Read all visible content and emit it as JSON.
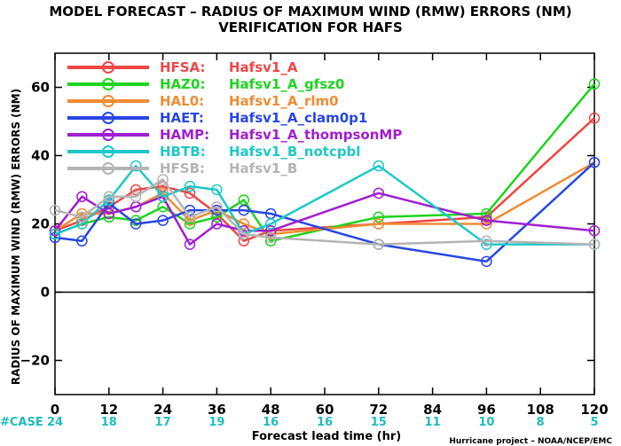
{
  "chart_data": {
    "type": "line",
    "title": "MODEL FORECAST – RADIUS OF MAXIMUM WIND (RMW) ERRORS (NM)",
    "subtitle": "VERIFICATION FOR HAFS",
    "xlabel": "Forecast lead time (hr)",
    "ylabel": "RADIUS OF MAXIMUM WIND (RMW) ERRORS (NM)",
    "xlim": [
      0,
      120
    ],
    "ylim": [
      -30,
      70
    ],
    "x_ticks": [
      0,
      12,
      24,
      36,
      48,
      60,
      72,
      84,
      96,
      108,
      120
    ],
    "y_ticks": [
      -20,
      0,
      20,
      40,
      60
    ],
    "y_tick_labels": [
      "−20",
      "0",
      "20",
      "40",
      "60"
    ],
    "x_tick_labels": [
      "0",
      "12",
      "24",
      "36",
      "48",
      "60",
      "72",
      "84",
      "96",
      "108",
      "120"
    ],
    "case_label": "#CASE",
    "case_counts": [
      "24",
      "18",
      "17",
      "19",
      "16",
      "16",
      "15",
      "11",
      "10",
      "8",
      "5"
    ],
    "legend_position": "top-left",
    "grid": false,
    "x": [
      0,
      6,
      12,
      18,
      24,
      30,
      36,
      42,
      48,
      72,
      96,
      120
    ],
    "series": [
      {
        "code": "HFSA:",
        "name": "Hafsv1_A",
        "color": "#f04646",
        "values": [
          18,
          21,
          25,
          30,
          31,
          29,
          23,
          15,
          18,
          20,
          22,
          51
        ]
      },
      {
        "code": "HAZ0:",
        "name": "Hafsv1_A_gfsz0",
        "color": "#1ed41e",
        "values": [
          17,
          20,
          22,
          21,
          25,
          20,
          22,
          27,
          15,
          22,
          23,
          61
        ]
      },
      {
        "code": "HAL0:",
        "name": "Hafsv1_A_rlm0",
        "color": "#f08c32",
        "values": [
          18,
          23,
          23,
          25,
          29,
          21,
          24,
          20,
          17,
          20,
          20,
          38
        ]
      },
      {
        "code": "HAET:",
        "name": "Hafsv1_A_clam0p1",
        "color": "#2846e6",
        "values": [
          16,
          15,
          26,
          20,
          21,
          24,
          24,
          24,
          23,
          14,
          9,
          38
        ]
      },
      {
        "code": "HAMP:",
        "name": "Hafsv1_A_thompsonMP",
        "color": "#a01ed2",
        "values": [
          18,
          28,
          23,
          25,
          28,
          14,
          20,
          18,
          18,
          29,
          21,
          18
        ]
      },
      {
        "code": "HBTB:",
        "name": "Hafsv1_B_notcpbl",
        "color": "#1ec8c8",
        "values": [
          17,
          20,
          27,
          37,
          28,
          31,
          30,
          17,
          20,
          37,
          14,
          14
        ]
      },
      {
        "code": "HFSB:",
        "name": "Hafsv1_B",
        "color": "#b4b4b4",
        "values": [
          24,
          22,
          28,
          28,
          33,
          22,
          25,
          17,
          16,
          14,
          15,
          14
        ]
      }
    ],
    "credit": "Hurricane project – NOAA/NCEP/EMC"
  }
}
